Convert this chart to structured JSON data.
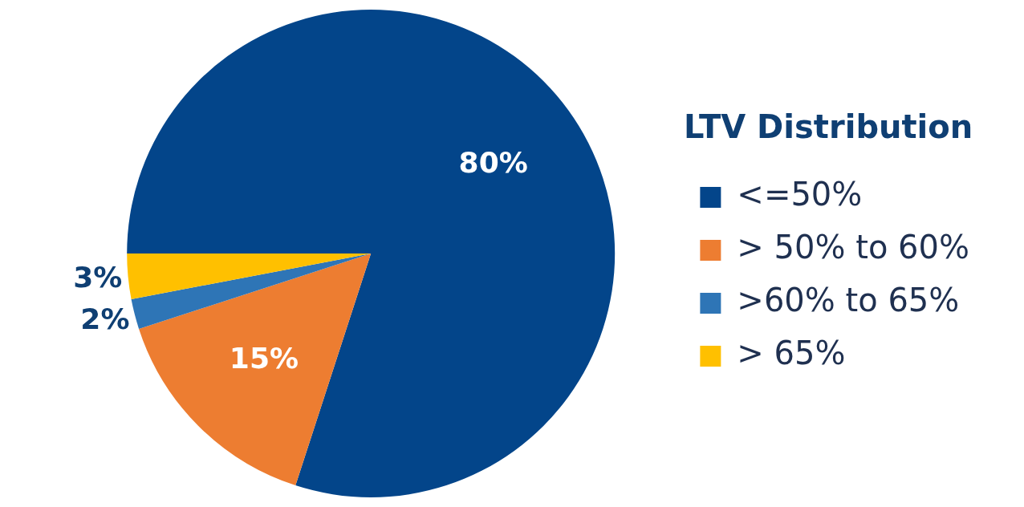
{
  "chart_data": {
    "type": "pie",
    "legend_title": "LTV Distribution",
    "categories": [
      "<=50%",
      "> 50% to 60%",
      ">60% to 65%",
      "> 65%"
    ],
    "values": [
      80,
      15,
      2,
      3
    ],
    "colors": [
      "#03458a",
      "#ed7d31",
      "#2e75b6",
      "#ffc000"
    ],
    "value_labels": [
      "80%",
      "15%",
      "2%",
      "3%"
    ],
    "legend": "right"
  }
}
